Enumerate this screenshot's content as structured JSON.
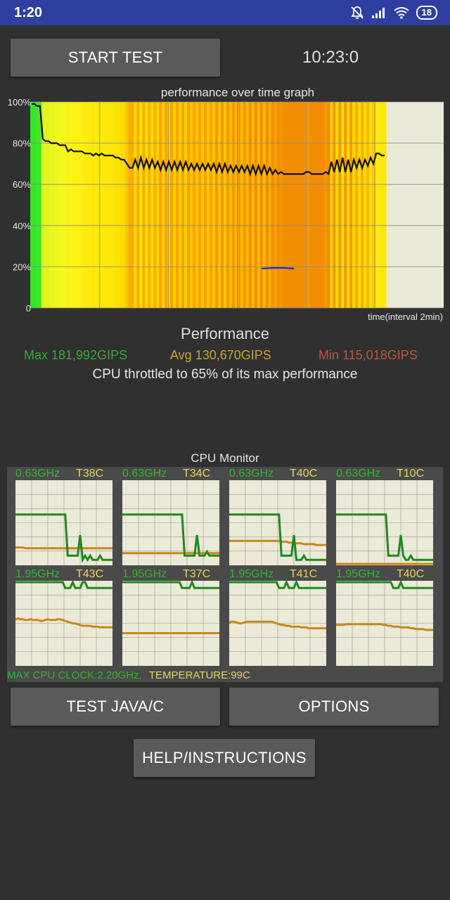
{
  "status_bar": {
    "time": "1:20",
    "battery": "18",
    "icons": [
      "mute-bell-icon",
      "signal-icon",
      "wifi-icon",
      "battery-icon"
    ]
  },
  "header": {
    "start_button": "START TEST",
    "clock": "10:23:0"
  },
  "graph": {
    "title": "performance over time graph",
    "y_ticks": [
      "100%",
      "80%",
      "60%",
      "40%",
      "20%",
      "0"
    ],
    "x_label": "time(interval 2min)"
  },
  "chart_data": {
    "type": "area",
    "title": "performance over time graph",
    "xlabel": "time(interval 2min)",
    "ylabel": "",
    "ylim": [
      0,
      100
    ],
    "y_ticks": [
      "100%",
      "80%",
      "60%",
      "40%",
      "20%",
      "0"
    ],
    "series": [
      {
        "values": [
          99,
          99,
          98,
          98,
          82,
          81,
          81,
          80,
          80,
          80,
          79,
          79,
          79,
          76,
          77,
          76,
          76,
          76,
          76,
          75,
          75,
          75,
          74,
          75,
          74,
          75,
          74,
          74,
          74,
          74,
          73,
          73,
          72,
          72,
          70,
          68,
          68,
          72,
          68,
          73,
          68,
          72,
          68,
          72,
          68,
          71,
          67,
          71,
          67,
          71,
          67,
          71,
          67,
          71,
          67,
          71,
          67,
          70,
          67,
          70,
          67,
          70,
          67,
          70,
          67,
          70,
          66,
          70,
          66,
          70,
          66,
          69,
          66,
          69,
          66,
          69,
          66,
          69,
          65,
          69,
          65,
          69,
          65,
          69,
          65,
          68,
          65,
          67,
          65,
          66,
          65,
          65,
          65,
          65,
          65,
          65,
          65,
          65,
          66,
          66,
          65,
          65,
          65,
          65,
          65,
          66,
          65,
          71,
          66,
          72,
          66,
          73,
          66,
          72,
          66,
          72,
          68,
          72,
          68,
          72,
          69,
          73,
          70,
          75,
          75,
          74,
          74
        ]
      }
    ]
  },
  "performance": {
    "title": "Performance",
    "max": "Max 181,992GIPS",
    "avg": "Avg 130,670GIPS",
    "min": "Min 115,018GIPS",
    "throttle": "CPU throttled to 65% of its max performance",
    "colors": {
      "max": "#3aa63a",
      "avg": "#c9a33a",
      "min": "#c0553a"
    }
  },
  "cpu_monitor": {
    "title": "CPU Monitor",
    "cores": [
      {
        "freq": "0.63GHz",
        "temp": "T38C",
        "clock": [
          60,
          60,
          60,
          60,
          60,
          60,
          60,
          60,
          60,
          60,
          60,
          60,
          60,
          60,
          60,
          60,
          60,
          60,
          60,
          60,
          60,
          10,
          10,
          10,
          10,
          10,
          35,
          5,
          10,
          5,
          10,
          5,
          5,
          5,
          10,
          5,
          5,
          5,
          5,
          5
        ],
        "temperature": [
          20,
          20,
          20,
          20,
          19,
          19,
          19,
          19,
          19,
          19,
          19,
          19,
          19,
          19,
          19,
          19,
          19,
          19,
          19,
          19,
          19,
          19,
          19,
          19,
          19,
          19,
          19,
          19,
          19,
          19,
          19,
          19,
          19,
          19,
          19,
          19,
          19,
          19,
          19,
          19
        ]
      },
      {
        "freq": "0.63GHz",
        "temp": "T34C",
        "clock": [
          60,
          60,
          60,
          60,
          60,
          60,
          60,
          60,
          60,
          60,
          60,
          60,
          60,
          60,
          60,
          60,
          60,
          60,
          60,
          60,
          60,
          60,
          60,
          60,
          60,
          10,
          10,
          10,
          10,
          10,
          35,
          10,
          10,
          10,
          15,
          10,
          10,
          10,
          10,
          10
        ],
        "temperature": [
          13,
          13,
          13,
          13,
          13,
          13,
          13,
          13,
          13,
          13,
          13,
          13,
          13,
          13,
          13,
          13,
          13,
          13,
          13,
          13,
          13,
          13,
          13,
          13,
          13,
          13,
          13,
          13,
          13,
          13,
          13,
          13,
          13,
          13,
          13,
          13,
          13,
          13,
          13,
          13
        ]
      },
      {
        "freq": "0.63GHz",
        "temp": "T40C",
        "clock": [
          60,
          60,
          60,
          60,
          60,
          60,
          60,
          60,
          60,
          60,
          60,
          60,
          60,
          60,
          60,
          60,
          60,
          60,
          60,
          60,
          60,
          10,
          10,
          10,
          10,
          10,
          35,
          5,
          5,
          5,
          10,
          5,
          5,
          5,
          5,
          5,
          5,
          5,
          5,
          5
        ],
        "temperature": [
          28,
          28,
          28,
          28,
          28,
          28,
          28,
          28,
          28,
          28,
          28,
          28,
          28,
          28,
          28,
          28,
          28,
          28,
          28,
          28,
          28,
          27,
          27,
          27,
          26,
          26,
          25,
          25,
          25,
          25,
          24,
          24,
          24,
          24,
          24,
          23,
          23,
          23,
          23,
          23
        ]
      },
      {
        "freq": "0.63GHz",
        "temp": "T10C",
        "clock": [
          60,
          60,
          60,
          60,
          60,
          60,
          60,
          60,
          60,
          60,
          60,
          60,
          60,
          60,
          60,
          60,
          60,
          60,
          60,
          60,
          60,
          10,
          10,
          10,
          10,
          10,
          35,
          10,
          5,
          5,
          10,
          5,
          5,
          5,
          5,
          5,
          5,
          5,
          5,
          5
        ],
        "temperature": [
          0,
          0,
          0,
          0,
          0,
          0,
          0,
          0,
          0,
          0,
          0,
          0,
          0,
          0,
          0,
          0,
          0,
          0,
          0,
          0,
          0,
          0,
          0,
          0,
          0,
          0,
          0,
          0,
          0,
          0,
          0,
          0,
          0,
          0,
          0,
          0,
          0,
          0,
          0,
          0
        ]
      },
      {
        "freq": "1.95GHz",
        "temp": "T43C",
        "clock": [
          100,
          100,
          100,
          100,
          100,
          100,
          100,
          100,
          100,
          100,
          100,
          100,
          100,
          100,
          100,
          100,
          100,
          100,
          100,
          100,
          93,
          93,
          93,
          100,
          93,
          93,
          93,
          100,
          100,
          93,
          93,
          93,
          93,
          93,
          93,
          93,
          93,
          93,
          93,
          93
        ],
        "temperature": [
          55,
          56,
          55,
          55,
          54,
          54,
          55,
          54,
          54,
          54,
          53,
          53,
          54,
          55,
          54,
          54,
          54,
          55,
          55,
          54,
          53,
          52,
          51,
          50,
          50,
          49,
          48,
          47,
          47,
          47,
          47,
          46,
          46,
          46,
          45,
          45,
          45,
          45,
          45,
          45
        ]
      },
      {
        "freq": "1.95GHz",
        "temp": "T37C",
        "clock": [
          100,
          100,
          100,
          100,
          100,
          100,
          100,
          100,
          100,
          100,
          100,
          100,
          100,
          100,
          100,
          100,
          100,
          100,
          100,
          100,
          100,
          100,
          100,
          100,
          93,
          93,
          93,
          93,
          100,
          93,
          93,
          93,
          93,
          93,
          93,
          93,
          93,
          93,
          93,
          93
        ],
        "temperature": [
          38,
          38,
          38,
          38,
          38,
          38,
          38,
          38,
          38,
          38,
          38,
          38,
          38,
          38,
          38,
          38,
          38,
          38,
          38,
          38,
          38,
          38,
          38,
          38,
          38,
          38,
          38,
          38,
          38,
          38,
          38,
          38,
          38,
          38,
          38,
          38,
          38,
          38,
          38,
          38
        ]
      },
      {
        "freq": "1.95GHz",
        "temp": "T41C",
        "clock": [
          100,
          100,
          100,
          100,
          100,
          100,
          100,
          100,
          100,
          100,
          100,
          100,
          100,
          100,
          100,
          100,
          100,
          100,
          100,
          100,
          93,
          93,
          93,
          100,
          93,
          93,
          93,
          100,
          93,
          93,
          93,
          93,
          93,
          93,
          93,
          93,
          93,
          93,
          93,
          93
        ],
        "temperature": [
          51,
          52,
          52,
          51,
          50,
          50,
          51,
          52,
          52,
          52,
          52,
          52,
          52,
          52,
          52,
          52,
          52,
          52,
          51,
          50,
          49,
          48,
          48,
          47,
          47,
          46,
          46,
          46,
          46,
          45,
          45,
          45,
          44,
          44,
          44,
          44,
          44,
          44,
          44,
          44
        ]
      },
      {
        "freq": "1.95GHz",
        "temp": "T40C",
        "clock": [
          100,
          100,
          100,
          100,
          100,
          100,
          100,
          100,
          100,
          100,
          100,
          100,
          100,
          100,
          100,
          100,
          100,
          100,
          100,
          100,
          100,
          100,
          100,
          93,
          93,
          93,
          100,
          93,
          93,
          93,
          93,
          93,
          93,
          93,
          93,
          93,
          93,
          93,
          93,
          93
        ],
        "temperature": [
          48,
          48,
          48,
          48,
          49,
          49,
          49,
          49,
          49,
          49,
          49,
          49,
          49,
          49,
          49,
          49,
          49,
          49,
          49,
          48,
          48,
          47,
          47,
          46,
          46,
          46,
          45,
          45,
          45,
          45,
          44,
          44,
          43,
          43,
          43,
          43,
          42,
          42,
          42,
          42
        ]
      }
    ],
    "max_clock": "MAX CPU CLOCK:2.20GHz,",
    "temperature": "TEMPERATURE:99C"
  },
  "buttons": {
    "test_java": "TEST JAVA/C",
    "options": "OPTIONS",
    "help": "HELP/INSTRUCTIONS"
  }
}
